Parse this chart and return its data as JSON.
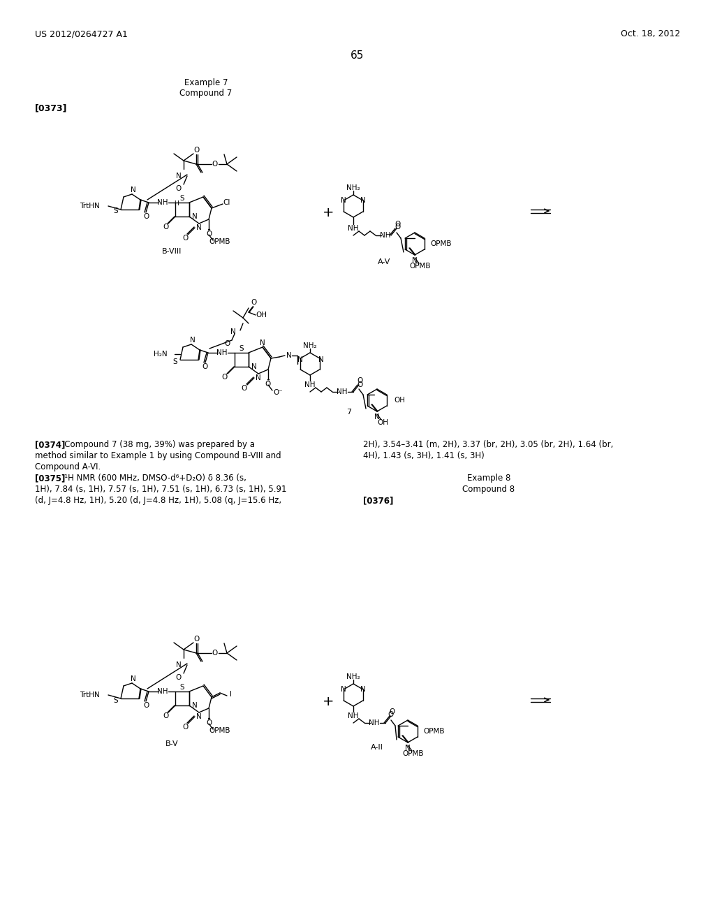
{
  "bg_color": "#ffffff",
  "header_left": "US 2012/0264727 A1",
  "header_right": "Oct. 18, 2012",
  "page_number": "65",
  "para0373": "[0373]",
  "para0374_col1_lines": [
    "[0374]   Compound 7 (38 mg, 39%) was prepared by a",
    "method similar to Example 1 by using Compound B-VIII and",
    "Compound A-VI."
  ],
  "para0375_col1_lines": [
    "[0375]   ¹H NMR (600 MHz, DMSO-d⁶+D₂O) δ 8.36 (s,",
    "1H), 7.84 (s, 1H), 7.57 (s, 1H), 7.51 (s, 1H), 6.73 (s, 1H), 5.91",
    "(d, J=4.8 Hz, 1H), 5.20 (d, J=4.8 Hz, 1H), 5.08 (q, J=15.6 Hz,"
  ],
  "para_col2_lines": [
    "2H), 3.54–3.41 (m, 2H), 3.37 (br, 2H), 3.05 (br, 2H), 1.64 (br,",
    "4H), 1.43 (s, 3H), 1.41 (s, 3H)"
  ],
  "example8_line1": "Example 8",
  "example8_line2": "Compound 8",
  "para0376": "[0376]",
  "label_bviii": "B-VIII",
  "label_av": "A-V",
  "label_7": "7",
  "label_bv": "B-V",
  "label_aii": "A-II"
}
